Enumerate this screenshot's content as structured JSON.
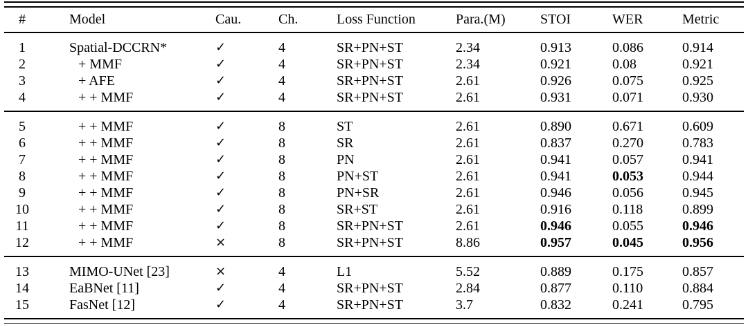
{
  "meta": {
    "background_color": "#ffffff",
    "text_color": "#000000",
    "rule_color": "#000000"
  },
  "table": {
    "columns": [
      {
        "key": "num",
        "label": "#"
      },
      {
        "key": "model",
        "label": "Model"
      },
      {
        "key": "cau",
        "label": "Cau."
      },
      {
        "key": "ch",
        "label": "Ch."
      },
      {
        "key": "loss",
        "label": "Loss Function"
      },
      {
        "key": "para",
        "label": "Para.(M)"
      },
      {
        "key": "stoi",
        "label": "STOI"
      },
      {
        "key": "wer",
        "label": "WER"
      },
      {
        "key": "metric",
        "label": "Metric"
      }
    ],
    "symbols": {
      "causal_yes": "✓",
      "causal_no": "×"
    },
    "sections": [
      {
        "rows": [
          {
            "num": "1",
            "model": "Spatial-DCCRN*",
            "indent": false,
            "cau": "✓",
            "ch": "4",
            "loss": "SR+PN+ST",
            "para": "2.34",
            "stoi": "0.913",
            "wer": "0.086",
            "metric": "0.914",
            "bold": []
          },
          {
            "num": "2",
            "model": "+ MMF",
            "indent": true,
            "cau": "✓",
            "ch": "4",
            "loss": "SR+PN+ST",
            "para": "2.34",
            "stoi": "0.921",
            "wer": "0.08",
            "metric": "0.921",
            "bold": []
          },
          {
            "num": "3",
            "model": "+ AFE",
            "indent": true,
            "cau": "✓",
            "ch": "4",
            "loss": "SR+PN+ST",
            "para": "2.61",
            "stoi": "0.926",
            "wer": "0.075",
            "metric": "0.925",
            "bold": []
          },
          {
            "num": "4",
            "model": "+ + MMF",
            "indent": true,
            "cau": "✓",
            "ch": "4",
            "loss": "SR+PN+ST",
            "para": "2.61",
            "stoi": "0.931",
            "wer": "0.071",
            "metric": "0.930",
            "bold": []
          }
        ]
      },
      {
        "rows": [
          {
            "num": "5",
            "model": "+ + MMF",
            "indent": true,
            "cau": "✓",
            "ch": "8",
            "loss": "ST",
            "para": "2.61",
            "stoi": "0.890",
            "wer": "0.671",
            "metric": "0.609",
            "bold": []
          },
          {
            "num": "6",
            "model": "+ + MMF",
            "indent": true,
            "cau": "✓",
            "ch": "8",
            "loss": "SR",
            "para": "2.61",
            "stoi": "0.837",
            "wer": "0.270",
            "metric": "0.783",
            "bold": []
          },
          {
            "num": "7",
            "model": "+ + MMF",
            "indent": true,
            "cau": "✓",
            "ch": "8",
            "loss": "PN",
            "para": "2.61",
            "stoi": "0.941",
            "wer": "0.057",
            "metric": "0.941",
            "bold": []
          },
          {
            "num": "8",
            "model": "+ + MMF",
            "indent": true,
            "cau": "✓",
            "ch": "8",
            "loss": "PN+ST",
            "para": "2.61",
            "stoi": "0.941",
            "wer": "0.053",
            "metric": "0.944",
            "bold": [
              "wer"
            ]
          },
          {
            "num": "9",
            "model": "+ + MMF",
            "indent": true,
            "cau": "✓",
            "ch": "8",
            "loss": "PN+SR",
            "para": "2.61",
            "stoi": "0.946",
            "wer": "0.056",
            "metric": "0.945",
            "bold": []
          },
          {
            "num": "10",
            "model": "+ + MMF",
            "indent": true,
            "cau": "✓",
            "ch": "8",
            "loss": "SR+ST",
            "para": "2.61",
            "stoi": "0.916",
            "wer": "0.118",
            "metric": "0.899",
            "bold": []
          },
          {
            "num": "11",
            "model": "+ + MMF",
            "indent": true,
            "cau": "✓",
            "ch": "8",
            "loss": "SR+PN+ST",
            "para": "2.61",
            "stoi": "0.946",
            "wer": "0.055",
            "metric": "0.946",
            "bold": [
              "stoi",
              "metric"
            ]
          },
          {
            "num": "12",
            "model": "+ + MMF",
            "indent": true,
            "cau": "×",
            "ch": "8",
            "loss": "SR+PN+ST",
            "para": "8.86",
            "stoi": "0.957",
            "wer": "0.045",
            "metric": "0.956",
            "bold": [
              "stoi",
              "wer",
              "metric"
            ]
          }
        ]
      },
      {
        "rows": [
          {
            "num": "13",
            "model": "MIMO-UNet [23]",
            "indent": false,
            "cau": "×",
            "ch": "4",
            "loss": "L1",
            "para": "5.52",
            "stoi": "0.889",
            "wer": "0.175",
            "metric": "0.857",
            "bold": []
          },
          {
            "num": "14",
            "model": "EaBNet [11]",
            "indent": false,
            "cau": "✓",
            "ch": "4",
            "loss": "SR+PN+ST",
            "para": "2.84",
            "stoi": "0.877",
            "wer": "0.110",
            "metric": "0.884",
            "bold": []
          },
          {
            "num": "15",
            "model": "FasNet [12]",
            "indent": false,
            "cau": "✓",
            "ch": "4",
            "loss": "SR+PN+ST",
            "para": "3.7",
            "stoi": "0.832",
            "wer": "0.241",
            "metric": "0.795",
            "bold": []
          }
        ]
      }
    ]
  }
}
